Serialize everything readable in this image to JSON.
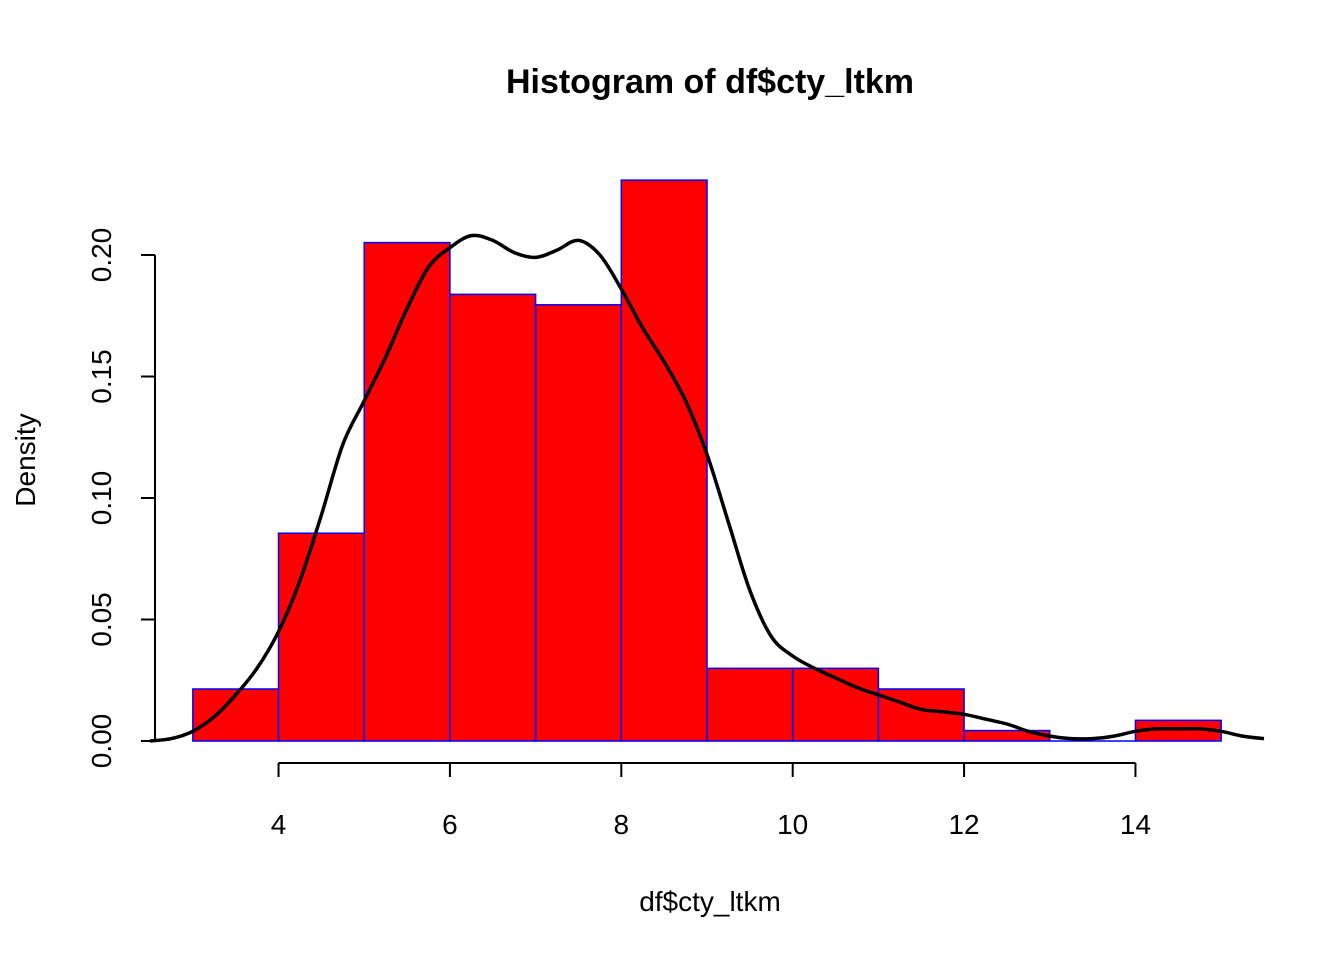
{
  "chart_data": {
    "type": "bar",
    "title": "Histogram of df$cty_ltkm",
    "xlabel": "df$cty_ltkm",
    "ylabel": "Density",
    "xlim": [
      2.5,
      15.5
    ],
    "ylim": [
      0,
      0.23
    ],
    "x_ticks": [
      4,
      6,
      8,
      10,
      12,
      14
    ],
    "y_ticks": [
      0.0,
      0.05,
      0.1,
      0.15,
      0.2
    ],
    "x_tick_labels": [
      "4",
      "6",
      "8",
      "10",
      "12",
      "14"
    ],
    "y_tick_labels": [
      "0.00",
      "0.05",
      "0.10",
      "0.15",
      "0.20"
    ],
    "bins": [
      {
        "start": 3,
        "end": 4,
        "density": 0.0214
      },
      {
        "start": 4,
        "end": 5,
        "density": 0.0855
      },
      {
        "start": 5,
        "end": 6,
        "density": 0.2051
      },
      {
        "start": 6,
        "end": 7,
        "density": 0.1838
      },
      {
        "start": 7,
        "end": 8,
        "density": 0.1795
      },
      {
        "start": 8,
        "end": 9,
        "density": 0.2308
      },
      {
        "start": 9,
        "end": 10,
        "density": 0.0299
      },
      {
        "start": 10,
        "end": 11,
        "density": 0.0299
      },
      {
        "start": 11,
        "end": 12,
        "density": 0.0214
      },
      {
        "start": 12,
        "end": 13,
        "density": 0.0043
      },
      {
        "start": 13,
        "end": 14,
        "density": 0.0
      },
      {
        "start": 14,
        "end": 15,
        "density": 0.0085
      }
    ],
    "density_curve": {
      "x": [
        2.5,
        2.75,
        3.0,
        3.25,
        3.5,
        3.75,
        4.0,
        4.25,
        4.5,
        4.75,
        5.0,
        5.25,
        5.5,
        5.75,
        6.0,
        6.25,
        6.5,
        6.75,
        7.0,
        7.25,
        7.5,
        7.75,
        8.0,
        8.25,
        8.5,
        8.75,
        9.0,
        9.25,
        9.5,
        9.75,
        10.0,
        10.25,
        10.5,
        10.75,
        11.0,
        11.25,
        11.5,
        11.75,
        12.0,
        12.25,
        12.5,
        12.75,
        13.0,
        13.25,
        13.5,
        13.75,
        14.0,
        14.25,
        14.5,
        14.75,
        15.0,
        15.25,
        15.5
      ],
      "y": [
        0.0,
        0.001,
        0.004,
        0.01,
        0.019,
        0.03,
        0.045,
        0.066,
        0.093,
        0.122,
        0.14,
        0.158,
        0.178,
        0.195,
        0.203,
        0.208,
        0.206,
        0.201,
        0.199,
        0.202,
        0.206,
        0.2,
        0.186,
        0.17,
        0.156,
        0.14,
        0.118,
        0.09,
        0.062,
        0.043,
        0.035,
        0.03,
        0.026,
        0.022,
        0.019,
        0.016,
        0.013,
        0.012,
        0.011,
        0.009,
        0.007,
        0.004,
        0.002,
        0.001,
        0.001,
        0.002,
        0.004,
        0.005,
        0.005,
        0.005,
        0.004,
        0.002,
        0.001
      ]
    },
    "grid": false,
    "colors": {
      "bar_fill": "#ff0000",
      "bar_border": "#0000ff",
      "curve": "#000000"
    }
  }
}
